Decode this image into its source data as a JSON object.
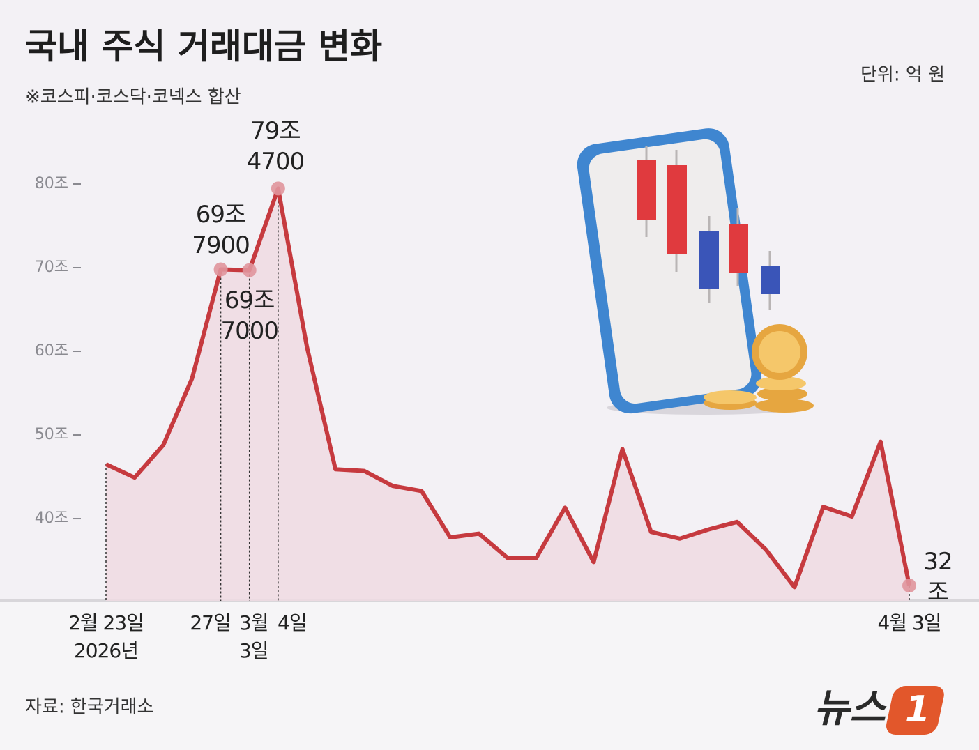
{
  "title": "국내 주식 거래대금 변화",
  "subtitle": "※코스피·코스닥·코넥스 합산",
  "unit": "단위: 억 원",
  "source": "자료: 한국거래소",
  "logo": {
    "text": "뉴스",
    "mark": "1"
  },
  "chart_data": {
    "type": "line",
    "categories": [
      "2월 23일\n2026년",
      null,
      null,
      null,
      "27일",
      "3월\n3일",
      "4일",
      null,
      null,
      null,
      null,
      null,
      null,
      null,
      null,
      null,
      null,
      null,
      null,
      null,
      null,
      null,
      null,
      null,
      null,
      null,
      null,
      null,
      "4월 3일"
    ],
    "values": [
      465000,
      449000,
      488000,
      567500,
      697900,
      697000,
      794700,
      606000,
      459000,
      457000,
      439000,
      433000,
      377500,
      382000,
      353000,
      353000,
      413000,
      348000,
      483000,
      384000,
      376000,
      387000,
      396000,
      363000,
      318000,
      414000,
      402500,
      492000,
      320000
    ],
    "value_labels": [
      null,
      null,
      null,
      null,
      "69조\n7900",
      "69조\n7000",
      "79조\n4700",
      null,
      null,
      null,
      null,
      null,
      null,
      null,
      null,
      null,
      null,
      null,
      null,
      null,
      null,
      null,
      null,
      null,
      null,
      null,
      null,
      null,
      "32조"
    ],
    "color": "#c63a3f",
    "ylim": [
      301700,
      850000
    ],
    "yticks": [
      {
        "value": 400000,
        "label": "40조"
      },
      {
        "value": 500000,
        "label": "50조"
      },
      {
        "value": 600000,
        "label": "60조"
      },
      {
        "value": 700000,
        "label": "70조"
      },
      {
        "value": 800000,
        "label": "80조"
      }
    ]
  }
}
